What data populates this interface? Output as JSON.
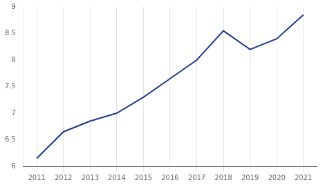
{
  "chart_data": {
    "type": "line",
    "x": [
      2011,
      2012,
      2013,
      2014,
      2015,
      2016,
      2017,
      2018,
      2019,
      2020,
      2021
    ],
    "values": [
      6.15,
      6.65,
      6.85,
      7.0,
      7.3,
      7.65,
      8.0,
      8.55,
      8.2,
      8.4,
      8.85
    ],
    "color": "#1a3a8a",
    "xlim": [
      2010.5,
      2021.5
    ],
    "xticks": [
      2011,
      2012,
      2013,
      2014,
      2015,
      2016,
      2017,
      2018,
      2019,
      2020,
      2021
    ],
    "ylim": [
      6,
      9
    ],
    "yticks": [
      6,
      6.5,
      7,
      7.5,
      8,
      8.5,
      9
    ],
    "grid": "x"
  }
}
